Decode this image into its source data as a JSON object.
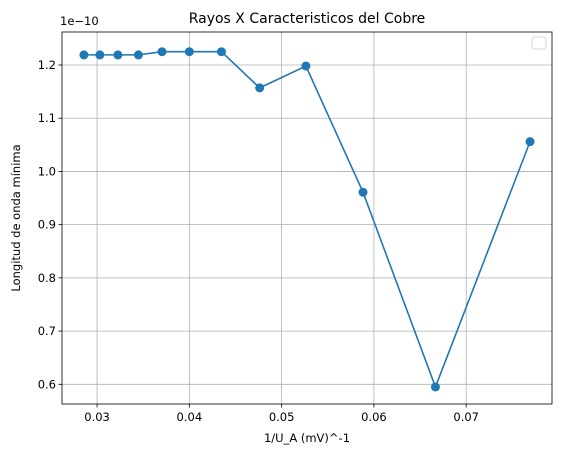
{
  "chart_data": {
    "type": "line",
    "title": "Rayos X Caracteristicos del Cobre",
    "xlabel": "1/U_A (mV)^-1",
    "ylabel": "Longitud de onda mínima",
    "y_offset_label": "1e−10",
    "x": [
      0.02857,
      0.0303,
      0.03226,
      0.03448,
      0.03704,
      0.04,
      0.04348,
      0.04762,
      0.05263,
      0.05882,
      0.06667,
      0.07692
    ],
    "series": [
      {
        "values": [
          1.219,
          1.219,
          1.219,
          1.219,
          1.225,
          1.225,
          1.225,
          1.157,
          1.198,
          0.961,
          0.595,
          1.056
        ]
      }
    ],
    "xlim": [
      0.0262,
      0.0793
    ],
    "ylim": [
      0.563,
      1.262
    ],
    "x_ticks": [
      0.03,
      0.04,
      0.05,
      0.06,
      0.07
    ],
    "x_tick_labels": [
      "0.03",
      "0.04",
      "0.05",
      "0.06",
      "0.07"
    ],
    "y_ticks": [
      0.6,
      0.7,
      0.8,
      0.9,
      1.0,
      1.1,
      1.2
    ],
    "y_tick_labels": [
      "0.6",
      "0.7",
      "0.8",
      "0.9",
      "1.0",
      "1.1",
      "1.2"
    ],
    "grid": true,
    "legend": "top-right",
    "colors": {
      "line": "#1f77b4",
      "grid": "#b0b0b0"
    }
  }
}
